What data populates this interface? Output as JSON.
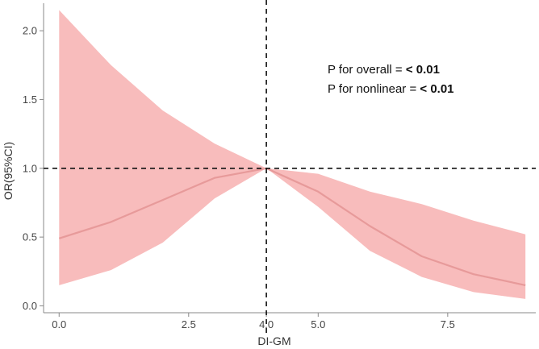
{
  "chart_data": {
    "type": "area",
    "title": "",
    "xlabel": "DI-GM",
    "ylabel": "OR(95%CI)",
    "xlim": [
      -0.3,
      9.2
    ],
    "ylim": [
      -0.05,
      2.2
    ],
    "xticks": [
      0.0,
      2.5,
      4.0,
      5.0,
      7.5
    ],
    "xtick_labels": [
      "0.0",
      "2.5",
      "4.0",
      "5.0",
      "7.5"
    ],
    "yticks": [
      0.0,
      0.5,
      1.0,
      1.5,
      2.0
    ],
    "ytick_labels": [
      "0.0",
      "0.5",
      "1.0",
      "1.5",
      "2.0"
    ],
    "grid": false,
    "reference_lines": {
      "x": 4.0,
      "y": 1.0,
      "style": "dashed"
    },
    "series": [
      {
        "x": [
          0.0,
          1.0,
          2.0,
          3.0,
          4.0,
          5.0,
          6.0,
          7.0,
          8.0,
          9.0
        ],
        "values": [
          0.49,
          0.61,
          0.77,
          0.93,
          1.0,
          0.83,
          0.58,
          0.36,
          0.23,
          0.15
        ],
        "lower": [
          0.15,
          0.26,
          0.46,
          0.78,
          1.0,
          0.72,
          0.4,
          0.21,
          0.1,
          0.05
        ],
        "upper": [
          2.15,
          1.75,
          1.42,
          1.18,
          1.0,
          0.96,
          0.83,
          0.74,
          0.62,
          0.52
        ]
      }
    ],
    "annotations": [
      {
        "label": "P for overall = ",
        "value": "< 0.01"
      },
      {
        "label": "P for nonlinear = ",
        "value": "< 0.01"
      }
    ],
    "colors": {
      "band": "#f8bcbc",
      "line": "#e79a9a",
      "reference": "#111111",
      "axis": "#888888"
    }
  }
}
